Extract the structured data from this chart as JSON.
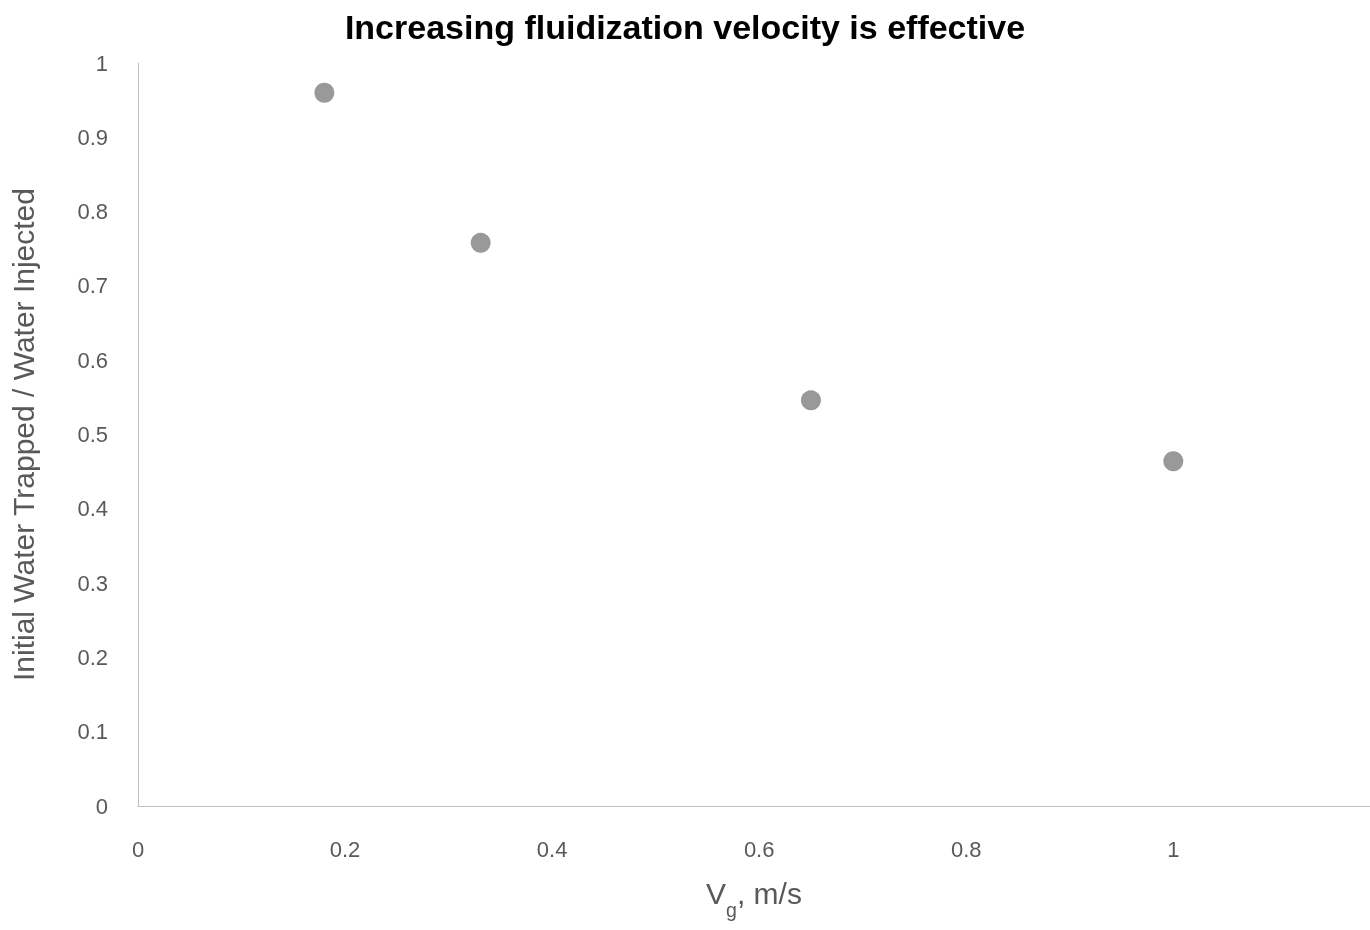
{
  "chart_data": {
    "type": "scatter",
    "title": "Increasing fluidization velocity is effective",
    "xlabel": "V$_{g}$, m/s",
    "ylabel": "Initial Water Trapped / Water Injected",
    "x": [
      0.18,
      0.331,
      0.65,
      1.0
    ],
    "series": [
      {
        "color": "#808080",
        "values": [
          0.96,
          0.758,
          0.546,
          0.464
        ]
      }
    ],
    "xlim": [
      0,
      1.19
    ],
    "xticks": [
      0,
      0.2,
      0.4,
      0.6,
      0.8,
      1
    ],
    "ylim": [
      0,
      1
    ],
    "yticks": [
      0,
      0.1,
      0.2,
      0.3,
      0.4,
      0.5,
      0.6,
      0.7,
      0.8,
      0.9,
      1
    ],
    "grid": false,
    "marker": "circle"
  }
}
